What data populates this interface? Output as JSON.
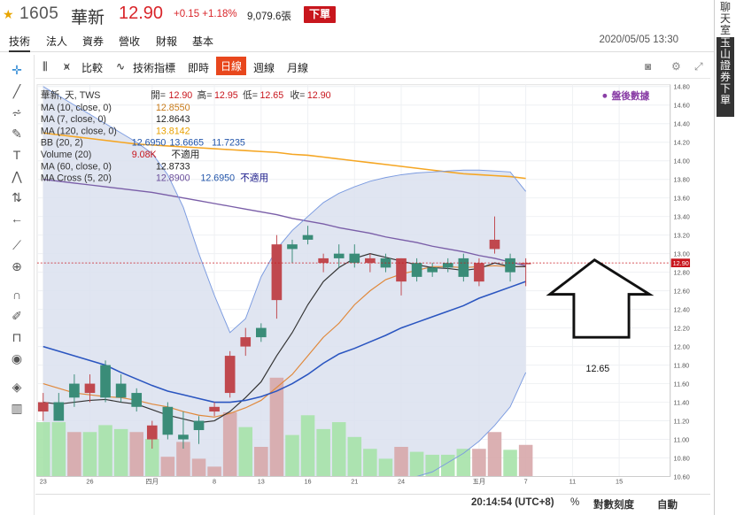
{
  "header": {
    "star_icon": "star-icon",
    "code": "1605",
    "name": "華新",
    "price": "12.90",
    "change": "+0.15 +1.18%",
    "volume": "9,079.6張",
    "order_label": "下單"
  },
  "nav": {
    "tabs": [
      "技術",
      "法人",
      "資券",
      "營收",
      "財報",
      "基本"
    ],
    "active": "技術",
    "datetime": "2020/05/05 13:30"
  },
  "side": {
    "chat": "聊天室",
    "broker": "玉山證券下單"
  },
  "toolbar": {
    "compare": "比較",
    "indicators": "技術指標",
    "intraday": "即時",
    "daily": "日線",
    "weekly": "週線",
    "monthly": "月線"
  },
  "legend": {
    "title": "華新, 天, TWS",
    "open_label": "開=",
    "open": "12.90",
    "high_label": "高=",
    "high": "12.95",
    "low_label": "低=",
    "low": "12.65",
    "close_label": "收=",
    "close": "12.90",
    "after_hours": "盤後數據",
    "rows": [
      {
        "label": "MA (10, close, 0)",
        "values": [
          "12.8550"
        ],
        "colors": [
          "#c87a18"
        ]
      },
      {
        "label": "MA (7, close, 0)",
        "values": [
          "12.8643"
        ],
        "colors": [
          "#222222"
        ]
      },
      {
        "label": "MA (120, close, 0)",
        "values": [
          "13.8142"
        ],
        "colors": [
          "#e8a000"
        ]
      },
      {
        "label": "BB (20, 2)",
        "values": [
          "12.6950",
          "13.6665",
          "11.7235"
        ],
        "colors": [
          "#2255aa",
          "#2255aa",
          "#2255aa"
        ]
      },
      {
        "label": "Volume (20)",
        "values": [
          "9.08K",
          "不適用"
        ],
        "colors": [
          "#c8161d",
          "#222222"
        ]
      },
      {
        "label": "MA (60, close, 0)",
        "values": [
          "12.8733"
        ],
        "colors": [
          "#222222"
        ]
      },
      {
        "label": "MA Cross (5, 20)",
        "values": [
          "12.8900",
          "12.6950",
          "不適用"
        ],
        "colors": [
          "#6a4e9a",
          "#2255aa",
          "#1a1a8a"
        ]
      }
    ]
  },
  "bottom": {
    "time": "20:14:54 (UTC+8)",
    "percent": "%",
    "log_scale": "對數刻度",
    "auto": "自動"
  },
  "annotation": {
    "text": "12.65",
    "arrow": "up-arrow-outline"
  },
  "colors": {
    "up": "#c0484e",
    "down": "#3a8c78",
    "ma10": "#e0883a",
    "ma7": "#333333",
    "ma120": "#f5a623",
    "ma60": "#7a5ea8",
    "bb_mid": "#2a55c0",
    "bb_band": "#7b9be0",
    "bb_fill": "#dbe0ee",
    "vol_up": "#d7a7aa",
    "vol_down": "#a6e2a8",
    "price_tag": "#c8161d"
  },
  "chart_data": {
    "type": "candlestick",
    "title": "華新, 天, TWS",
    "ylim": [
      10.6,
      14.82
    ],
    "y_ticks": [
      "10.60",
      "10.80",
      "11.00",
      "11.20",
      "11.40",
      "11.60",
      "11.80",
      "12.00",
      "12.20",
      "12.40",
      "12.60",
      "12.80",
      "13.00",
      "13.20",
      "13.40",
      "13.60",
      "13.80",
      "14.00",
      "14.20",
      "14.40",
      "14.60",
      "14.80"
    ],
    "current_price_tag": "12.90",
    "x_labels": [
      {
        "label": "23",
        "index": 0
      },
      {
        "label": "26",
        "index": 3
      },
      {
        "label": "四月",
        "index": 7
      },
      {
        "label": "8",
        "index": 11
      },
      {
        "label": "13",
        "index": 14
      },
      {
        "label": "16",
        "index": 17
      },
      {
        "label": "21",
        "index": 20
      },
      {
        "label": "24",
        "index": 23
      },
      {
        "label": "五月",
        "index": 28
      },
      {
        "label": "7",
        "index": 31
      },
      {
        "label": "11",
        "index": 34
      },
      {
        "label": "15",
        "index": 37
      }
    ],
    "candles": [
      {
        "o": 11.3,
        "h": 11.5,
        "l": 11.2,
        "c": 11.4
      },
      {
        "o": 11.4,
        "h": 11.5,
        "l": 11.2,
        "c": 11.2
      },
      {
        "o": 11.6,
        "h": 11.7,
        "l": 11.35,
        "c": 11.45
      },
      {
        "o": 11.5,
        "h": 11.7,
        "l": 11.4,
        "c": 11.6
      },
      {
        "o": 11.8,
        "h": 11.85,
        "l": 11.4,
        "c": 11.45
      },
      {
        "o": 11.6,
        "h": 11.7,
        "l": 11.4,
        "c": 11.45
      },
      {
        "o": 11.5,
        "h": 11.55,
        "l": 11.3,
        "c": 11.35
      },
      {
        "o": 11.0,
        "h": 11.2,
        "l": 10.9,
        "c": 11.15
      },
      {
        "o": 11.35,
        "h": 11.4,
        "l": 11.0,
        "c": 11.05
      },
      {
        "o": 11.05,
        "h": 11.3,
        "l": 10.9,
        "c": 11.0
      },
      {
        "o": 11.2,
        "h": 11.25,
        "l": 10.95,
        "c": 11.1
      },
      {
        "o": 11.3,
        "h": 11.4,
        "l": 11.25,
        "c": 11.35
      },
      {
        "o": 11.5,
        "h": 11.95,
        "l": 11.45,
        "c": 11.9
      },
      {
        "o": 12.0,
        "h": 12.2,
        "l": 11.9,
        "c": 12.1
      },
      {
        "o": 12.2,
        "h": 12.25,
        "l": 12.05,
        "c": 12.1
      },
      {
        "o": 12.5,
        "h": 13.2,
        "l": 12.3,
        "c": 13.1
      },
      {
        "o": 13.1,
        "h": 13.15,
        "l": 12.9,
        "c": 13.05
      },
      {
        "o": 13.2,
        "h": 13.3,
        "l": 13.1,
        "c": 13.15
      },
      {
        "o": 12.9,
        "h": 13.0,
        "l": 12.8,
        "c": 12.95
      },
      {
        "o": 13.0,
        "h": 13.1,
        "l": 12.85,
        "c": 12.95
      },
      {
        "o": 13.0,
        "h": 13.1,
        "l": 12.85,
        "c": 12.9
      },
      {
        "o": 12.9,
        "h": 13.0,
        "l": 12.8,
        "c": 12.95
      },
      {
        "o": 12.95,
        "h": 13.0,
        "l": 12.8,
        "c": 12.85
      },
      {
        "o": 12.7,
        "h": 12.95,
        "l": 12.55,
        "c": 12.95
      },
      {
        "o": 12.9,
        "h": 12.95,
        "l": 12.7,
        "c": 12.75
      },
      {
        "o": 12.85,
        "h": 12.9,
        "l": 12.75,
        "c": 12.8
      },
      {
        "o": 12.9,
        "h": 12.95,
        "l": 12.8,
        "c": 12.85
      },
      {
        "o": 12.95,
        "h": 13.0,
        "l": 12.7,
        "c": 12.75
      },
      {
        "o": 12.7,
        "h": 12.95,
        "l": 12.65,
        "c": 12.9
      },
      {
        "o": 13.05,
        "h": 13.4,
        "l": 13.0,
        "c": 13.15
      },
      {
        "o": 12.95,
        "h": 13.0,
        "l": 12.7,
        "c": 12.8
      },
      {
        "o": 12.9,
        "h": 12.95,
        "l": 12.65,
        "c": 12.9
      }
    ],
    "volume": [
      {
        "v": 0.55,
        "dir": "down"
      },
      {
        "v": 0.55,
        "dir": "down"
      },
      {
        "v": 0.45,
        "dir": "up"
      },
      {
        "v": 0.45,
        "dir": "down"
      },
      {
        "v": 0.52,
        "dir": "down"
      },
      {
        "v": 0.48,
        "dir": "down"
      },
      {
        "v": 0.45,
        "dir": "up"
      },
      {
        "v": 0.38,
        "dir": "down"
      },
      {
        "v": 0.2,
        "dir": "up"
      },
      {
        "v": 0.35,
        "dir": "up"
      },
      {
        "v": 0.18,
        "dir": "up"
      },
      {
        "v": 0.1,
        "dir": "up"
      },
      {
        "v": 0.65,
        "dir": "up"
      },
      {
        "v": 0.5,
        "dir": "down"
      },
      {
        "v": 0.3,
        "dir": "up"
      },
      {
        "v": 1.0,
        "dir": "up"
      },
      {
        "v": 0.42,
        "dir": "down"
      },
      {
        "v": 0.62,
        "dir": "down"
      },
      {
        "v": 0.48,
        "dir": "down"
      },
      {
        "v": 0.55,
        "dir": "down"
      },
      {
        "v": 0.4,
        "dir": "down"
      },
      {
        "v": 0.28,
        "dir": "down"
      },
      {
        "v": 0.18,
        "dir": "down"
      },
      {
        "v": 0.3,
        "dir": "up"
      },
      {
        "v": 0.25,
        "dir": "down"
      },
      {
        "v": 0.22,
        "dir": "down"
      },
      {
        "v": 0.22,
        "dir": "down"
      },
      {
        "v": 0.28,
        "dir": "down"
      },
      {
        "v": 0.28,
        "dir": "up"
      },
      {
        "v": 0.45,
        "dir": "up"
      },
      {
        "v": 0.27,
        "dir": "down"
      },
      {
        "v": 0.32,
        "dir": "up"
      }
    ],
    "series": [
      {
        "name": "MA (120, close, 0)",
        "values": [
          14.3,
          14.28,
          14.26,
          14.24,
          14.22,
          14.2,
          14.18,
          14.17,
          14.16,
          14.15,
          14.14,
          14.13,
          14.12,
          14.11,
          14.1,
          14.09,
          14.07,
          14.06,
          14.04,
          14.02,
          14.0,
          13.98,
          13.96,
          13.94,
          13.92,
          13.9,
          13.88,
          13.86,
          13.85,
          13.84,
          13.83,
          13.81
        ]
      },
      {
        "name": "MA (60, close, 0)",
        "values": [
          13.8,
          13.78,
          13.76,
          13.74,
          13.72,
          13.7,
          13.68,
          13.66,
          13.63,
          13.6,
          13.57,
          13.54,
          13.51,
          13.48,
          13.45,
          13.42,
          13.38,
          13.35,
          13.32,
          13.28,
          13.25,
          13.22,
          13.18,
          13.15,
          13.12,
          13.08,
          13.05,
          13.02,
          12.98,
          12.95,
          12.91,
          12.87
        ]
      },
      {
        "name": "MA (10, close, 0)",
        "values": [
          11.6,
          11.55,
          11.5,
          11.48,
          11.46,
          11.45,
          11.42,
          11.38,
          11.35,
          11.3,
          11.26,
          11.24,
          11.28,
          11.34,
          11.42,
          11.56,
          11.7,
          11.9,
          12.1,
          12.25,
          12.45,
          12.6,
          12.72,
          12.78,
          12.82,
          12.86,
          12.86,
          12.85,
          12.86,
          12.87,
          12.86,
          12.86
        ]
      },
      {
        "name": "MA (7, close, 0)",
        "values": [
          11.4,
          11.38,
          11.4,
          11.42,
          11.43,
          11.4,
          11.38,
          11.32,
          11.26,
          11.22,
          11.18,
          11.2,
          11.3,
          11.45,
          11.62,
          11.9,
          12.15,
          12.45,
          12.7,
          12.85,
          12.95,
          13.0,
          12.96,
          12.92,
          12.88,
          12.85,
          12.84,
          12.82,
          12.84,
          12.9,
          12.86,
          12.86
        ]
      },
      {
        "name": "BB mid",
        "values": [
          12.0,
          11.95,
          11.9,
          11.85,
          11.8,
          11.72,
          11.65,
          11.58,
          11.52,
          11.48,
          11.44,
          11.4,
          11.4,
          11.42,
          11.46,
          11.52,
          11.6,
          11.7,
          11.82,
          11.92,
          11.98,
          12.05,
          12.12,
          12.2,
          12.26,
          12.32,
          12.38,
          12.44,
          12.52,
          12.58,
          12.64,
          12.7
        ]
      },
      {
        "name": "BB upper",
        "values": [
          14.8,
          14.7,
          14.6,
          14.5,
          14.4,
          14.3,
          14.2,
          14.08,
          13.85,
          13.5,
          13.0,
          12.55,
          12.15,
          12.3,
          12.75,
          13.05,
          13.25,
          13.4,
          13.55,
          13.65,
          13.72,
          13.78,
          13.82,
          13.85,
          13.87,
          13.88,
          13.89,
          13.9,
          13.9,
          13.89,
          13.88,
          13.67
        ]
      },
      {
        "name": "BB lower",
        "values": [
          10.6,
          10.6,
          10.6,
          10.6,
          10.6,
          10.6,
          10.6,
          10.6,
          10.6,
          10.6,
          10.6,
          10.6,
          10.6,
          10.6,
          10.6,
          10.6,
          10.6,
          10.6,
          10.6,
          10.6,
          10.6,
          10.6,
          10.6,
          10.6,
          10.6,
          10.65,
          10.75,
          10.85,
          10.98,
          11.15,
          11.35,
          11.72
        ]
      }
    ]
  }
}
